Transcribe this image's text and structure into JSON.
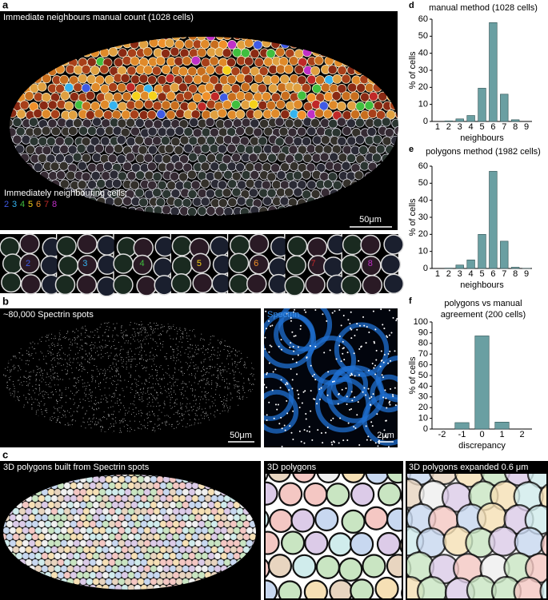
{
  "panels": {
    "a": {
      "label": "a",
      "title": "Immediate neighbours manual count (1028 cells)",
      "legend_title": "Immediately neighbouring cells:",
      "legend_digits": [
        "2",
        "3",
        "4",
        "5",
        "6",
        "7",
        "8"
      ],
      "thumbnail_digits": [
        "2",
        "3",
        "4",
        "5",
        "6",
        "7",
        "8"
      ],
      "neighbour_colors": [
        "#3f5be6",
        "#35b4f0",
        "#3fbf3f",
        "#f5d21a",
        "#f0902a",
        "#c02828",
        "#c030c8"
      ],
      "scale": "50μm"
    },
    "b": {
      "label": "b",
      "title": "~80,000 Spectrin spots",
      "scale": "50μm",
      "inset_title": "Spectrin",
      "inset_scale": "2μm"
    },
    "c": {
      "label": "c",
      "title": "3D polygons built from Spectrin spots",
      "middle_title": "3D polygons",
      "right_title": "3D polygons expanded 0.6 μm"
    }
  },
  "chart_data": [
    {
      "type": "bar",
      "label": "d",
      "title": [
        "manual method (1028 cells)"
      ],
      "categories": [
        "1",
        "2",
        "3",
        "4",
        "5",
        "6",
        "7",
        "8",
        "9"
      ],
      "values": [
        0,
        0.3,
        1.5,
        3.5,
        19.5,
        58,
        16,
        1,
        0
      ],
      "color": "#6a9fa2",
      "ylim": [
        0,
        60
      ],
      "yticks": [
        0,
        10,
        20,
        30,
        40,
        50,
        60
      ],
      "xlabel": "neighbours",
      "ylabel": "% of cells"
    },
    {
      "type": "bar",
      "label": "e",
      "title": [
        "polygons method (1982 cells)"
      ],
      "categories": [
        "1",
        "2",
        "3",
        "4",
        "5",
        "6",
        "7",
        "8",
        "9"
      ],
      "values": [
        0,
        0.2,
        2,
        5,
        20,
        57,
        16,
        0.7,
        0.1
      ],
      "color": "#6a9fa2",
      "ylim": [
        0,
        60
      ],
      "yticks": [
        0,
        10,
        20,
        30,
        40,
        50,
        60
      ],
      "xlabel": "neighbours",
      "ylabel": "% of cells"
    },
    {
      "type": "bar",
      "label": "f",
      "title": [
        "polygons vs manual",
        "agreement (200 cells)"
      ],
      "categories": [
        "-2",
        "-1",
        "0",
        "1",
        "2"
      ],
      "values": [
        0,
        6,
        87,
        6.5,
        0
      ],
      "color": "#6a9fa2",
      "ylim": [
        0,
        100
      ],
      "yticks": [
        0,
        10,
        20,
        30,
        40,
        50,
        60,
        70,
        80,
        90,
        100
      ],
      "xlabel": "discrepancy",
      "ylabel": "% of cells"
    }
  ]
}
